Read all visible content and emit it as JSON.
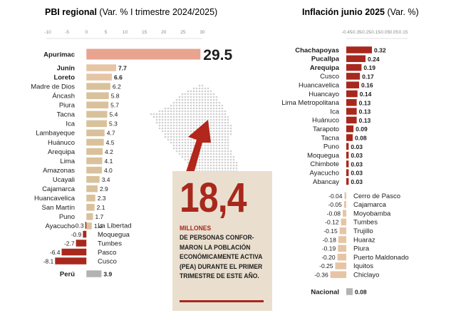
{
  "left_title": {
    "main": "PBI regional",
    "sub": " (Var. % I trimestre 2024/2025)"
  },
  "right_title": {
    "main": "Inflación junio 2025",
    "sub": " (Var. %)"
  },
  "callout": {
    "number": "18,4",
    "highlight": "MILLONES",
    "text": "DE PERSONAS CONFOR-MARON LA POBLACIÓN ECONÓMICAMENTE ACTIVA (PEA) DURANTE EL PRIMER TRIMESTRE DE ESTE AÑO."
  },
  "colors": {
    "accent": "#e8a48f",
    "tan": "#d9c29b",
    "darkred": "#a8281d",
    "grey": "#b3b3b3",
    "peach": "#e6c5a5"
  },
  "chart_data": [
    {
      "type": "bar",
      "orientation": "horizontal",
      "title": "PBI regional (Var. % I trimestre 2024/2025)",
      "xlim": [
        -10,
        30
      ],
      "ticks": [
        "-10",
        "-5",
        "0",
        "5",
        "10",
        "15",
        "20",
        "25",
        "30"
      ],
      "categories": [
        "Apurímac",
        "Junín",
        "Loreto",
        "Madre de Dios",
        "Áncash",
        "Piura",
        "Tacna",
        "Ica",
        "Lambayeque",
        "Huánuco",
        "Arequipa",
        "Lima",
        "Amazonas",
        "Ucayali",
        "Cajamarca",
        "Huancavelica",
        "San Martín",
        "Puno",
        "Ayacucho",
        "La Libertad",
        "Moquegua",
        "Tumbes",
        "Pasco",
        "Cusco",
        "Perú"
      ],
      "values": [
        29.5,
        7.7,
        6.6,
        6.2,
        5.8,
        5.7,
        5.4,
        5.3,
        4.7,
        4.5,
        4.2,
        4.1,
        4.0,
        3.4,
        2.9,
        2.3,
        2.1,
        1.7,
        1.4,
        -0.3,
        -0.9,
        -2.7,
        -6.4,
        -8.1,
        3.9
      ],
      "labels": [
        "29.5",
        "7.7",
        "6.6",
        "6.2",
        "5.8",
        "5.7",
        "5.4",
        "5.3",
        "4.7",
        "4.5",
        "4.2",
        "4.1",
        "4.0",
        "3.4",
        "2.9",
        "2.3",
        "2.1",
        "1.7",
        "1.4",
        "-0.3",
        "-0.9",
        "-2.7",
        "-6.4",
        "-8.1",
        "3.9"
      ],
      "bold": [
        "Apurímac",
        "Junín",
        "Loreto",
        "Perú"
      ]
    },
    {
      "type": "bar",
      "orientation": "horizontal",
      "title": "Inflación junio 2025 (Var. %)",
      "xlim": [
        -0.45,
        0.32
      ],
      "ticks": [
        "-0.45",
        "-0.35",
        "-0.25",
        "-0.15",
        "-0.05",
        "0.05",
        "0.15"
      ],
      "categories": [
        "Chachapoyas",
        "Pucallpa",
        "Arequipa",
        "Cusco",
        "Huancavelica",
        "Huancayo",
        "Lima Metropolitana",
        "Ica",
        "Huánuco",
        "Tarapoto",
        "Tacna",
        "Puno",
        "Moquegua",
        "Chimbote",
        "Ayacucho",
        "Abancay",
        "Cerro de Pasco",
        "Cajamarca",
        "Moyobamba",
        "Tumbes",
        "Trujillo",
        "Huaraz",
        "Piura",
        "Puerto Maldonado",
        "Iquitos",
        "Chiclayo",
        "Nacional"
      ],
      "values": [
        0.32,
        0.24,
        0.19,
        0.17,
        0.16,
        0.14,
        0.13,
        0.13,
        0.13,
        0.09,
        0.08,
        0.03,
        0.03,
        0.03,
        0.03,
        0.03,
        -0.04,
        -0.05,
        -0.08,
        -0.12,
        -0.15,
        -0.18,
        -0.19,
        -0.2,
        -0.25,
        -0.36,
        0.08
      ],
      "labels": [
        "0.32",
        "0.24",
        "0.19",
        "0.17",
        "0.16",
        "0.14",
        "0.13",
        "0.13",
        "0.13",
        "0.09",
        "0.08",
        "0.03",
        "0.03",
        "0.03",
        "0.03",
        "0.03",
        "-0.04",
        "-0.05",
        "-0.08",
        "-0.12",
        "-0.15",
        "-0.18",
        "-0.19",
        "-0.20",
        "-0.25",
        "-0.36",
        "0.08"
      ],
      "bold": [
        "Chachapoyas",
        "Pucallpa",
        "Arequipa",
        "Nacional"
      ]
    }
  ]
}
